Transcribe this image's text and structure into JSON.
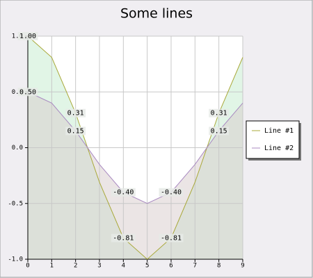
{
  "chart_data": {
    "type": "line",
    "title": "Some lines",
    "x": [
      0,
      1,
      2,
      3,
      4,
      5,
      6,
      7,
      8,
      9
    ],
    "xlim": [
      0,
      9
    ],
    "xticks": [
      0,
      1,
      2,
      3,
      4,
      5,
      6,
      7,
      8,
      9
    ],
    "ylim": [
      -1,
      1
    ],
    "yticks": [
      {
        "value": -1,
        "label": "-1.0"
      },
      -0.5,
      {
        "value": 0,
        "label": "0.0"
      },
      0.5,
      {
        "value": 1,
        "label": "1.0"
      }
    ],
    "grid": true,
    "legend": "right",
    "area": true,
    "series": [
      {
        "name": "Line #1",
        "color": "#a8a838",
        "fill_color": "#c4ecce",
        "values": [
          1,
          0.81,
          0.31,
          -0.31,
          -0.81,
          -1,
          -0.81,
          -0.31,
          0.31,
          0.81
        ],
        "value_labels": [
          "1.00",
          null,
          "0.31",
          null,
          "-0.81",
          null,
          "-0.81",
          null,
          "0.31",
          null
        ]
      },
      {
        "name": "Line #2",
        "color": "#a888c0",
        "fill_color": "#d8cccc",
        "values": [
          0.5,
          0.4,
          0.15,
          -0.15,
          -0.4,
          -0.5,
          -0.4,
          -0.15,
          0.15,
          0.4
        ],
        "value_labels": [
          "0.50",
          null,
          "0.15",
          null,
          "-0.40",
          null,
          "-0.40",
          null,
          "0.15",
          null
        ]
      }
    ]
  }
}
